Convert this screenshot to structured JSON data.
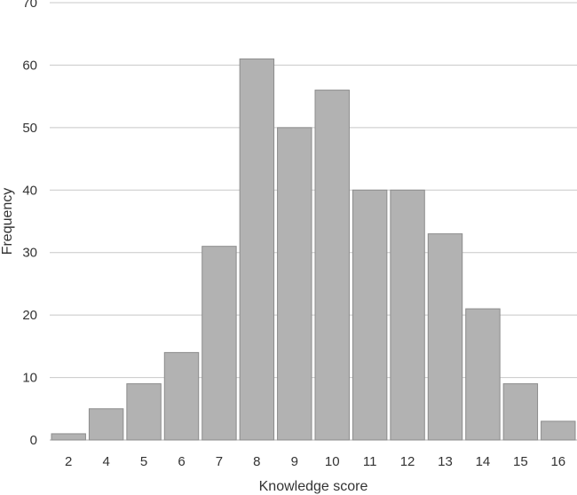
{
  "chart_data": {
    "type": "bar",
    "title": "",
    "xlabel": "Knowledge score",
    "ylabel": "Frequency",
    "categories": [
      "2",
      "4",
      "5",
      "6",
      "7",
      "8",
      "9",
      "10",
      "11",
      "12",
      "13",
      "14",
      "15",
      "16"
    ],
    "values": [
      1,
      5,
      9,
      14,
      31,
      61,
      50,
      56,
      40,
      40,
      33,
      21,
      9,
      3
    ],
    "ylim": [
      0,
      70
    ],
    "yticks": [
      "0",
      "10",
      "20",
      "30",
      "40",
      "50",
      "60",
      "70"
    ],
    "grid": true,
    "legend": "none",
    "bar_color": "#b2b2b2",
    "bar_border_color": "#8c8c8c",
    "grid_color": "#c8c8c8"
  }
}
